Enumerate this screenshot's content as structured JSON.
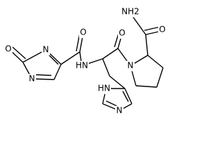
{
  "atoms": [
    {
      "label": "O"
    },
    {
      "label": "N"
    },
    {
      "label": "N"
    },
    {
      "label": "O"
    },
    {
      "label": "HN"
    },
    {
      "label": "O"
    },
    {
      "label": "N"
    },
    {
      "label": "NH2"
    },
    {
      "label": "O"
    },
    {
      "label": "HN"
    },
    {
      "label": "N"
    }
  ]
}
